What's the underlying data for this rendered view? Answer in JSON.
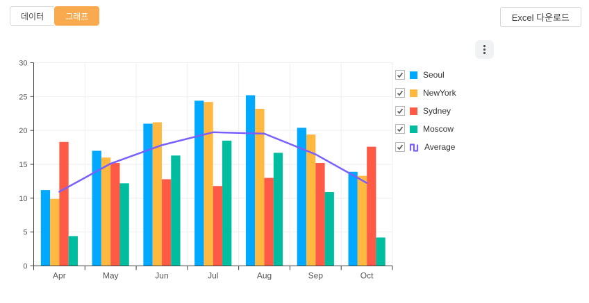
{
  "header": {
    "tabs": [
      {
        "label": "데이터",
        "active": false
      },
      {
        "label": "그래프",
        "active": true
      }
    ],
    "excel_button": "Excel 다운로드",
    "menu_icon": "kebab-menu-icon"
  },
  "legend": {
    "items": [
      {
        "label": "Seoul",
        "color": "#00a9ff",
        "checked": true,
        "icon": "square-swatch"
      },
      {
        "label": "NewYork",
        "color": "#ffb840",
        "checked": true,
        "icon": "square-swatch"
      },
      {
        "label": "Sydney",
        "color": "#ff5a46",
        "checked": true,
        "icon": "square-swatch"
      },
      {
        "label": "Moscow",
        "color": "#00bd9f",
        "checked": true,
        "icon": "square-swatch"
      },
      {
        "label": "Average",
        "color": "#785fff",
        "checked": true,
        "icon": "line-glyph"
      }
    ]
  },
  "chart_data": {
    "type": "combo-column-line",
    "categories": [
      "Apr",
      "May",
      "Jun",
      "Jul",
      "Aug",
      "Sep",
      "Oct"
    ],
    "series": [
      {
        "name": "Seoul",
        "type": "column",
        "color": "#00a9ff",
        "values": [
          11.2,
          17.0,
          21.0,
          24.4,
          25.2,
          20.4,
          13.9
        ]
      },
      {
        "name": "NewYork",
        "type": "column",
        "color": "#ffb840",
        "values": [
          9.9,
          16.0,
          21.2,
          24.2,
          23.2,
          19.4,
          13.3
        ]
      },
      {
        "name": "Sydney",
        "type": "column",
        "color": "#ff5a46",
        "values": [
          18.3,
          15.2,
          12.8,
          11.8,
          13.0,
          15.2,
          17.6
        ]
      },
      {
        "name": "Moscow",
        "type": "column",
        "color": "#00bd9f",
        "values": [
          4.4,
          12.2,
          16.3,
          18.5,
          16.7,
          10.9,
          4.2
        ]
      },
      {
        "name": "Average",
        "type": "line",
        "color": "#785fff",
        "values": [
          10.95,
          15.1,
          17.83,
          19.73,
          19.53,
          16.48,
          12.25
        ]
      }
    ],
    "ylim": [
      0,
      30
    ],
    "yticks": [
      0,
      5,
      10,
      15,
      20,
      25,
      30
    ],
    "xlabel": "",
    "ylabel": "",
    "grid": "both",
    "legend_position": "right",
    "colors": {
      "axis": "#3f3f3f",
      "grid": "#eeeeee",
      "tick_label": "#555555"
    }
  }
}
